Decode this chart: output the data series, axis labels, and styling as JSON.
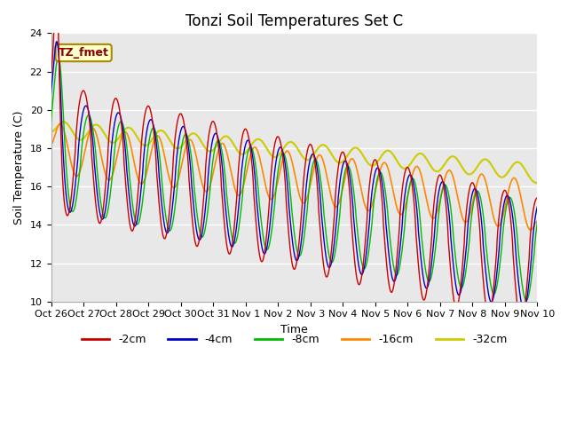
{
  "title": "Tonzi Soil Temperatures Set C",
  "xlabel": "Time",
  "ylabel": "Soil Temperature (C)",
  "ylim": [
    10,
    24
  ],
  "yticks": [
    10,
    12,
    14,
    16,
    18,
    20,
    22,
    24
  ],
  "colors": {
    "-2cm": "#cc0000",
    "-4cm": "#0000cc",
    "-8cm": "#00bb00",
    "-16cm": "#ff8800",
    "-32cm": "#cccc00"
  },
  "annotation_text": "TZ_fmet",
  "annotation_bg": "#ffffcc",
  "annotation_border": "#aa8800",
  "background_color": "#e8e8e8",
  "title_fontsize": 12,
  "axis_fontsize": 9,
  "tick_fontsize": 8
}
